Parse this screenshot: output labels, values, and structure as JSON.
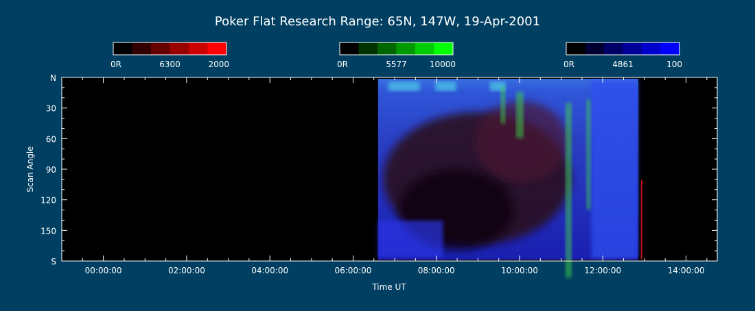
{
  "chart_data": {
    "type": "heatmap",
    "title": "Poker Flat Research Range: 65N, 147W, 19-Apr-2001",
    "xlabel": "Time UT",
    "ylabel": "Scan Angle",
    "x_ticks": [
      "00:00:00",
      "02:00:00",
      "04:00:00",
      "06:00:00",
      "08:00:00",
      "10:00:00",
      "12:00:00",
      "14:00:00"
    ],
    "x_range_hours": [
      -1.0,
      14.75
    ],
    "y_ticks": [
      {
        "value": 0,
        "label": "N"
      },
      {
        "value": 30,
        "label": "30"
      },
      {
        "value": 60,
        "label": "60"
      },
      {
        "value": 90,
        "label": "90"
      },
      {
        "value": 120,
        "label": "120"
      },
      {
        "value": 150,
        "label": "150"
      },
      {
        "value": 180,
        "label": "S"
      }
    ],
    "y_range": [
      0,
      180
    ],
    "data_window_hours": [
      6.6,
      12.85
    ],
    "colorbars": [
      {
        "name": "6300",
        "min_label": "0R",
        "max_label": "2000",
        "colors": [
          "#000000",
          "#330000",
          "#660000",
          "#990000",
          "#cc0000",
          "#ff0000"
        ]
      },
      {
        "name": "5577",
        "min_label": "0R",
        "max_label": "10000",
        "colors": [
          "#000000",
          "#003300",
          "#006600",
          "#009900",
          "#00cc00",
          "#00ff00"
        ]
      },
      {
        "name": "4861",
        "min_label": "0R",
        "max_label": "100",
        "colors": [
          "#000000",
          "#000033",
          "#000066",
          "#000099",
          "#0000cc",
          "#0000ff"
        ]
      }
    ]
  }
}
